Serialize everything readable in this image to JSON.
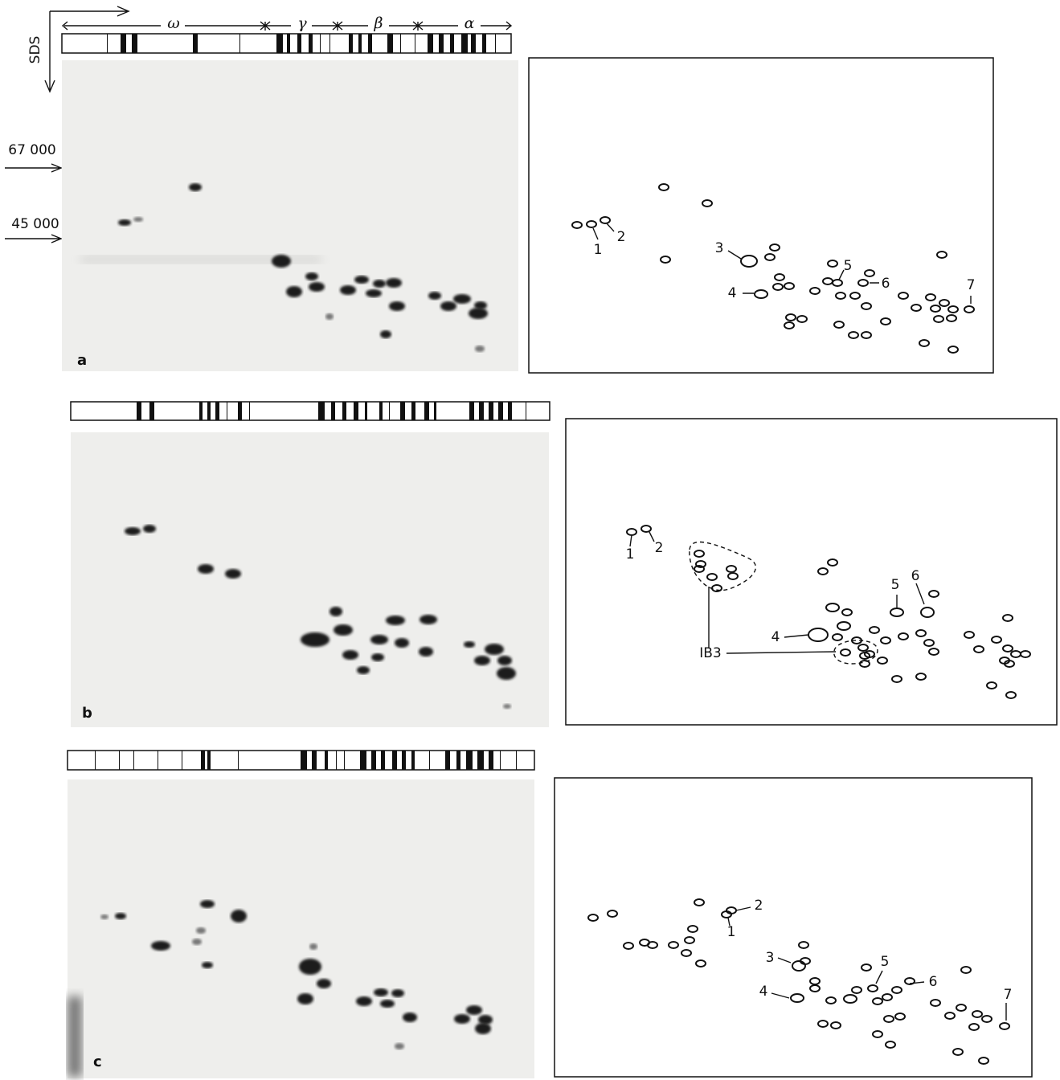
{
  "axis": {
    "label": "SDS",
    "markers": [
      "67 000",
      "45 000"
    ]
  },
  "fractions": [
    "ω",
    "γ",
    "β",
    "α"
  ],
  "panels": [
    {
      "label": "a",
      "spots": [
        "1",
        "2",
        "3",
        "4",
        "5",
        "6",
        "7"
      ]
    },
    {
      "label": "b",
      "spots": [
        "1",
        "2",
        "4",
        "5",
        "6"
      ],
      "group": "IB3"
    },
    {
      "label": "c",
      "spots": [
        "1",
        "2",
        "3",
        "4",
        "5",
        "6",
        "7"
      ]
    }
  ]
}
